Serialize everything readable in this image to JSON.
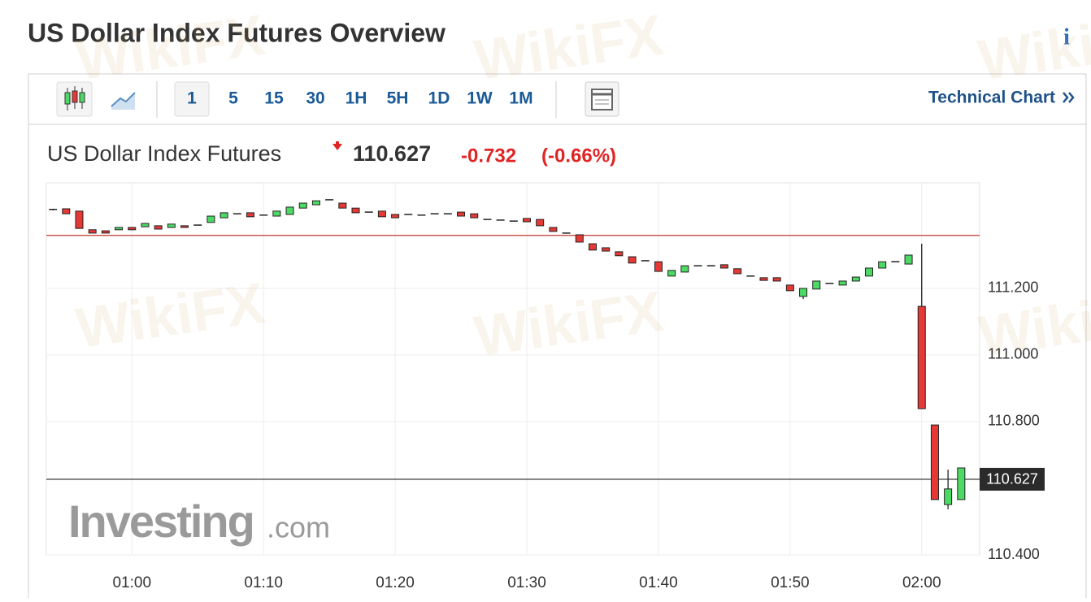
{
  "page": {
    "title": "US Dollar Index Futures Overview",
    "info": "i",
    "intervals": [
      "1",
      "5",
      "15",
      "30",
      "1H",
      "5H",
      "1D",
      "1W",
      "1M"
    ],
    "technical_chart": "Technical Chart",
    "quote": {
      "name": "US Dollar Index Futures",
      "price": "110.627",
      "change": "-0.732",
      "change_pct": "(-0.66%)"
    },
    "watermark": {
      "brand": "Investing",
      "domain": ".com",
      "overlay": "WikiFX"
    }
  },
  "chart_data": {
    "type": "candlestick",
    "x": [
      54,
      55,
      56,
      57,
      58,
      59,
      60,
      61,
      62,
      63,
      64,
      65,
      66,
      67,
      68,
      69,
      70,
      71,
      72,
      73,
      74,
      75,
      76,
      77,
      78,
      79,
      80,
      81,
      82,
      83,
      84,
      85,
      86,
      87,
      88,
      89,
      90,
      91,
      92,
      93,
      94,
      95,
      96,
      97,
      98,
      99,
      100,
      101,
      102,
      103,
      104,
      105,
      106,
      107,
      108,
      109,
      110,
      111,
      112,
      113,
      114,
      115,
      116,
      117,
      118,
      119,
      120,
      121,
      122,
      123
    ],
    "open": [
      111.437,
      111.439,
      111.432,
      111.376,
      111.373,
      111.376,
      111.383,
      111.385,
      111.388,
      111.383,
      111.388,
      111.39,
      111.398,
      111.412,
      111.424,
      111.427,
      111.42,
      111.417,
      111.422,
      111.441,
      111.451,
      111.466,
      111.456,
      111.441,
      111.429,
      111.432,
      111.422,
      111.422,
      111.42,
      111.424,
      111.424,
      111.429,
      111.424,
      111.407,
      111.405,
      111.402,
      111.41,
      111.407,
      111.383,
      111.366,
      111.361,
      111.334,
      111.322,
      111.31,
      111.295,
      111.283,
      111.28,
      111.237,
      111.249,
      111.268,
      111.268,
      111.271,
      111.259,
      111.237,
      111.232,
      111.232,
      111.21,
      111.176,
      111.198,
      111.215,
      111.21,
      111.222,
      111.237,
      111.261,
      111.28,
      111.273,
      111.146,
      110.79,
      110.551,
      110.566
    ],
    "high": [
      111.439,
      111.439,
      111.432,
      111.376,
      111.373,
      111.383,
      111.383,
      111.395,
      111.388,
      111.393,
      111.388,
      111.39,
      111.417,
      111.427,
      111.424,
      111.427,
      111.42,
      111.432,
      111.444,
      111.456,
      111.463,
      111.466,
      111.456,
      111.441,
      111.429,
      111.432,
      111.422,
      111.422,
      111.42,
      111.424,
      111.424,
      111.429,
      111.424,
      111.407,
      111.405,
      111.402,
      111.41,
      111.407,
      111.383,
      111.366,
      111.361,
      111.334,
      111.322,
      111.31,
      111.295,
      111.283,
      111.28,
      111.254,
      111.268,
      111.268,
      111.268,
      111.271,
      111.259,
      111.237,
      111.232,
      111.232,
      111.21,
      111.2,
      111.222,
      111.215,
      111.222,
      111.234,
      111.261,
      111.28,
      111.28,
      111.3,
      111.334,
      110.79,
      110.656,
      110.661
    ],
    "low": [
      111.434,
      111.424,
      111.38,
      111.366,
      111.366,
      111.376,
      111.376,
      111.385,
      111.378,
      111.383,
      111.383,
      111.39,
      111.398,
      111.412,
      111.424,
      111.415,
      111.42,
      111.417,
      111.422,
      111.441,
      111.451,
      111.466,
      111.441,
      111.427,
      111.429,
      111.415,
      111.412,
      111.422,
      111.42,
      111.424,
      111.424,
      111.417,
      111.412,
      111.407,
      111.405,
      111.402,
      111.4,
      111.388,
      111.371,
      111.366,
      111.339,
      111.315,
      111.312,
      111.298,
      111.276,
      111.283,
      111.251,
      111.237,
      111.249,
      111.268,
      111.268,
      111.261,
      111.244,
      111.237,
      111.224,
      111.222,
      111.193,
      111.168,
      111.198,
      111.215,
      111.21,
      111.222,
      111.237,
      111.261,
      111.28,
      111.273,
      110.839,
      110.566,
      110.537,
      110.566
    ],
    "close": [
      111.437,
      111.424,
      111.38,
      111.366,
      111.366,
      111.383,
      111.376,
      111.395,
      111.378,
      111.393,
      111.383,
      111.39,
      111.417,
      111.427,
      111.424,
      111.415,
      111.42,
      111.432,
      111.444,
      111.456,
      111.463,
      111.466,
      111.441,
      111.427,
      111.429,
      111.415,
      111.412,
      111.422,
      111.42,
      111.424,
      111.424,
      111.417,
      111.412,
      111.407,
      111.405,
      111.402,
      111.4,
      111.388,
      111.371,
      111.366,
      111.339,
      111.315,
      111.312,
      111.298,
      111.276,
      111.283,
      111.251,
      111.254,
      111.268,
      111.268,
      111.268,
      111.261,
      111.244,
      111.237,
      111.224,
      111.222,
      111.193,
      111.2,
      111.222,
      111.215,
      111.222,
      111.234,
      111.261,
      111.28,
      111.28,
      111.3,
      110.839,
      110.566,
      110.598,
      110.661
    ],
    "up_color": "#4cd964",
    "down_color": "#e53935",
    "xlim": [
      53.5,
      124.4
    ],
    "ylim": [
      110.4,
      111.517
    ],
    "xticks": [
      {
        "value": 60,
        "label": "01:00"
      },
      {
        "value": 70,
        "label": "01:10"
      },
      {
        "value": 80,
        "label": "01:20"
      },
      {
        "value": 90,
        "label": "01:30"
      },
      {
        "value": 100,
        "label": "01:40"
      },
      {
        "value": 110,
        "label": "01:50"
      },
      {
        "value": 120,
        "label": "02:00"
      }
    ],
    "yticks": [
      {
        "value": 110.4,
        "label": "110.400"
      },
      {
        "value": 110.8,
        "label": "110.800"
      },
      {
        "value": 111.0,
        "label": "111.000"
      },
      {
        "value": 111.2,
        "label": "111.200"
      }
    ],
    "grid": true,
    "reference_line": {
      "value": 111.359,
      "color": "#c0392b"
    },
    "last_price": 110.627
  }
}
